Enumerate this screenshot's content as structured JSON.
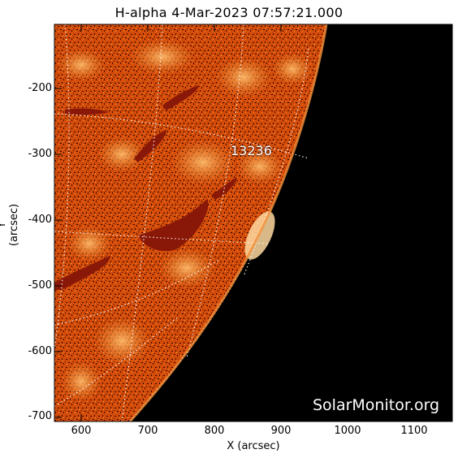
{
  "title": "H-alpha   4-Mar-2023 07:57:21.000",
  "axes": {
    "xlabel": "X (arcsec)",
    "ylabel": "Y (arcsec)",
    "xticks": [
      "600",
      "700",
      "800",
      "900",
      "1000",
      "1100"
    ],
    "yticks": [
      "-200",
      "-300",
      "-400",
      "-500",
      "-600",
      "-700"
    ],
    "xrange": [
      555,
      1155
    ],
    "yrange": [
      -705,
      -105
    ]
  },
  "region_label": "13236",
  "watermark": "SolarMonitor.org",
  "colors": {
    "disk": "#d24a08",
    "disk_bright": "#f59a3c",
    "filament": "#8a1808",
    "space": "#000000",
    "grid": "#ffffff"
  }
}
